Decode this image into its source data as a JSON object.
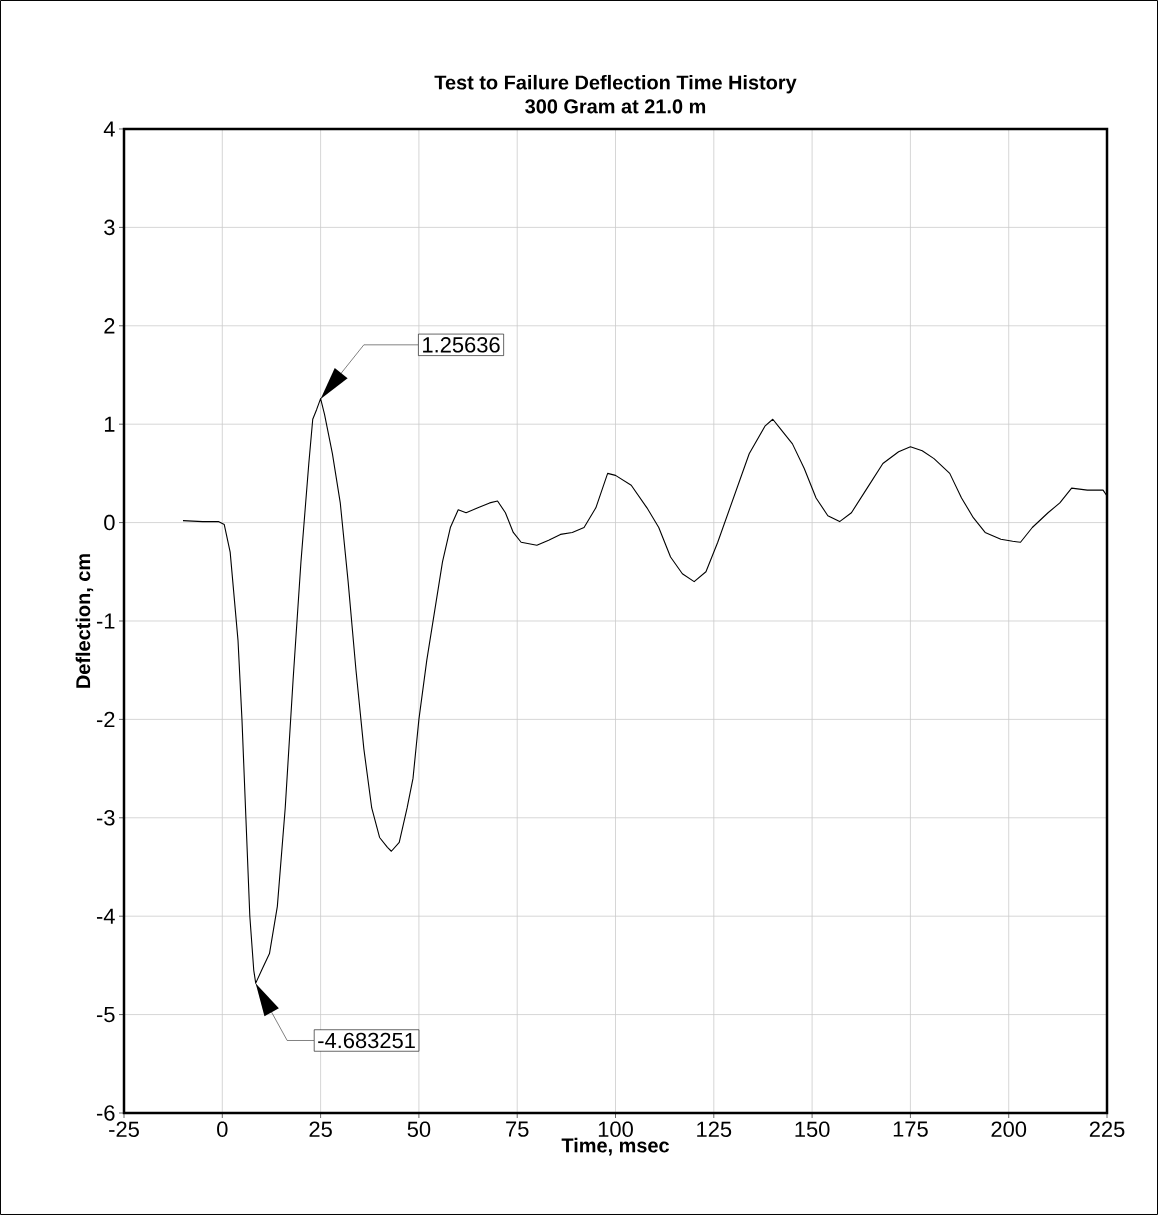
{
  "chart_data": {
    "type": "line",
    "title": "Test to Failure Deflection Time History",
    "subtitle": "300 Gram at 21.0 m",
    "xlabel": "Time, msec",
    "ylabel": "Deflection, cm",
    "xlim": [
      -25,
      225
    ],
    "ylim": [
      -6,
      4
    ],
    "xticks": [
      -25,
      0,
      25,
      50,
      75,
      100,
      125,
      150,
      175,
      200,
      225
    ],
    "yticks": [
      -6,
      -5,
      -4,
      -3,
      -2,
      -1,
      0,
      1,
      2,
      3,
      4
    ],
    "grid": true,
    "marker": "none",
    "line_style": "solid",
    "annotations": [
      {
        "text": "1.25636",
        "x": 25,
        "y": 1.25636
      },
      {
        "text": "-4.683251",
        "x": 8.5,
        "y": -4.683251
      }
    ],
    "series": [
      {
        "color": "#000000",
        "x": [
          -10,
          -5,
          -1,
          0.5,
          2,
          4,
          5,
          6,
          7,
          8,
          8.5,
          10,
          12,
          14,
          16,
          18,
          20,
          22,
          23,
          24,
          25,
          26,
          28,
          30,
          32,
          34,
          36,
          38,
          40,
          42,
          43,
          45,
          47,
          48.5,
          50,
          52,
          54,
          56,
          58,
          60,
          62,
          65,
          68,
          70,
          72,
          74,
          76,
          80,
          83,
          86,
          89,
          92,
          95,
          98,
          100,
          104,
          108,
          111,
          114,
          117,
          120,
          123,
          126,
          130,
          134,
          138,
          140,
          142,
          145,
          148,
          151,
          154,
          157,
          160,
          164,
          168,
          172,
          175,
          178,
          181,
          185,
          188,
          191,
          194,
          198,
          201,
          203,
          206,
          210,
          213,
          216,
          220,
          224,
          225
        ],
        "values": [
          0.02,
          0.01,
          0.01,
          -0.02,
          -0.3,
          -1.2,
          -2.0,
          -3.0,
          -4.0,
          -4.55,
          -4.68,
          -4.55,
          -4.38,
          -3.9,
          -2.9,
          -1.6,
          -0.4,
          0.6,
          1.05,
          1.15,
          1.26,
          1.1,
          0.7,
          0.2,
          -0.6,
          -1.5,
          -2.3,
          -2.9,
          -3.2,
          -3.3,
          -3.34,
          -3.25,
          -2.9,
          -2.6,
          -2.0,
          -1.4,
          -0.9,
          -0.4,
          -0.05,
          0.13,
          0.1,
          0.15,
          0.2,
          0.22,
          0.1,
          -0.1,
          -0.2,
          -0.23,
          -0.18,
          -0.12,
          -0.1,
          -0.05,
          0.15,
          0.5,
          0.48,
          0.38,
          0.15,
          -0.05,
          -0.35,
          -0.52,
          -0.6,
          -0.5,
          -0.2,
          0.25,
          0.7,
          0.98,
          1.05,
          0.95,
          0.8,
          0.55,
          0.25,
          0.07,
          0.01,
          0.1,
          0.35,
          0.6,
          0.72,
          0.77,
          0.73,
          0.65,
          0.5,
          0.25,
          0.05,
          -0.1,
          -0.17,
          -0.19,
          -0.2,
          -0.05,
          0.1,
          0.2,
          0.35,
          0.33,
          0.33,
          0.27
        ]
      }
    ]
  }
}
